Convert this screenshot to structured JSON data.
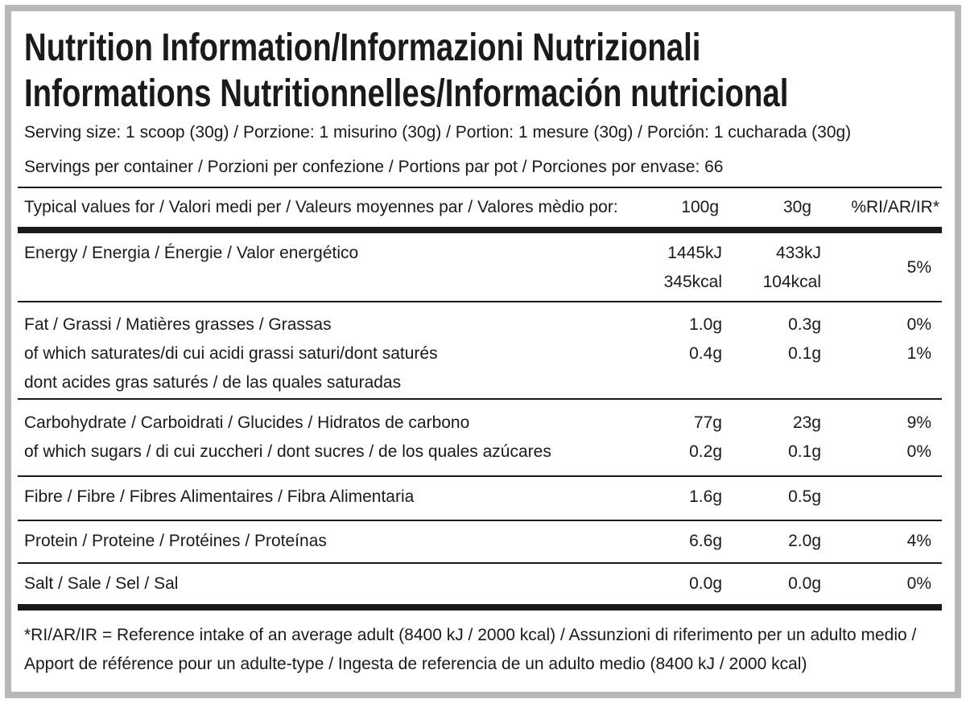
{
  "header": {
    "title_lines": [
      "Nutrition Information/Informazioni Nutrizionali",
      "Informations Nutritionnelles/Información nutricional"
    ],
    "serving_size": "Serving size: 1 scoop (30g) / Porzione: 1 misurino (30g) / Portion: 1 mesure (30g) / Porción: 1 cucharada (30g)",
    "servings_per_container": "Servings per container / Porzioni per confezione / Portions par pot / Porciones por envase: 66"
  },
  "table": {
    "columns": [
      "Typical values for / Valori medi per / Valeurs moyennes par / Valores mèdio por:",
      "100g",
      "30g",
      "%RI/AR/IR*"
    ],
    "rows": [
      {
        "label": [
          "Energy / Energia / Énergie / Valor energético"
        ],
        "per_100g": [
          "1445kJ",
          "345kcal"
        ],
        "per_30g": [
          "433kJ",
          "104kcal"
        ],
        "ri": [
          "5%"
        ]
      },
      {
        "label": [
          "Fat / Grassi / Matières grasses / Grassas",
          "of which saturates/di cui acidi grassi saturi/dont saturés",
          "dont acides gras saturés / de las quales saturadas"
        ],
        "per_100g": [
          "1.0g",
          "0.4g"
        ],
        "per_30g": [
          "0.3g",
          "0.1g"
        ],
        "ri": [
          "0%",
          "1%"
        ]
      },
      {
        "label": [
          "Carbohydrate / Carboidrati / Glucides / Hidratos de carbono",
          "of which sugars / di cui zuccheri / dont sucres / de los quales azúcares"
        ],
        "per_100g": [
          "77g",
          "0.2g"
        ],
        "per_30g": [
          "23g",
          "0.1g"
        ],
        "ri": [
          "9%",
          "0%"
        ]
      },
      {
        "label": [
          "Fibre / Fibre / Fibres Alimentaires / Fibra Alimentaria"
        ],
        "per_100g": [
          "1.6g"
        ],
        "per_30g": [
          "0.5g"
        ],
        "ri": []
      },
      {
        "label": [
          "Protein / Proteine / Protéines / Proteínas"
        ],
        "per_100g": [
          "6.6g"
        ],
        "per_30g": [
          "2.0g"
        ],
        "ri": [
          "4%"
        ]
      },
      {
        "label": [
          "Salt / Sale / Sel / Sal"
        ],
        "per_100g": [
          "0.0g"
        ],
        "per_30g": [
          "0.0g"
        ],
        "ri": [
          "0%"
        ]
      }
    ]
  },
  "footnote": "*RI/AR/IR = Reference intake of an average adult (8400 kJ / 2000 kcal)  / Assunzioni di riferimento per un adulto medio / Apport de référence pour un adulte-type / Ingesta de referencia de un adulto medio (8400 kJ / 2000 kcal)"
}
